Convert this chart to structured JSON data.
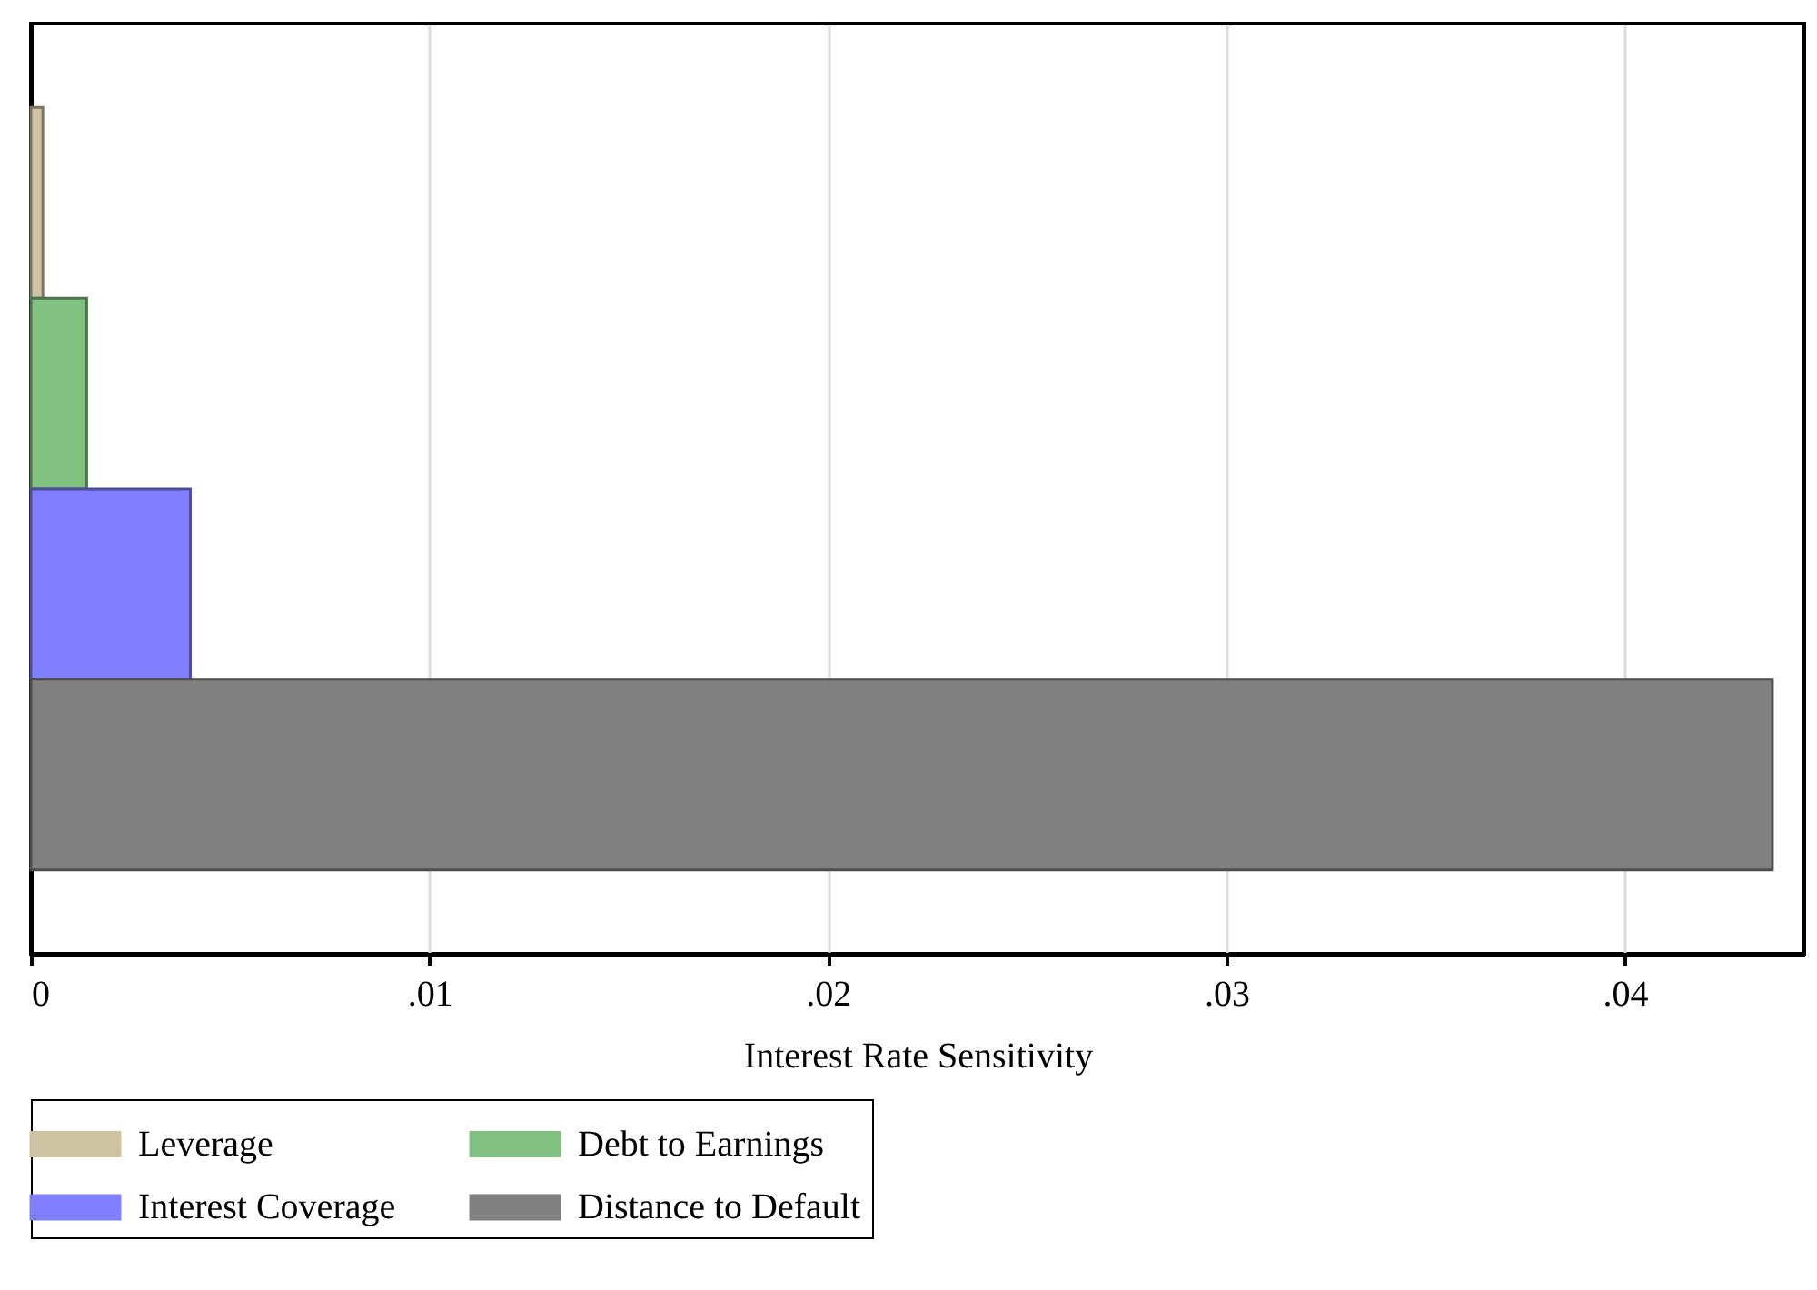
{
  "chart_data": {
    "type": "bar",
    "orientation": "horizontal",
    "xlabel": "Interest Rate Sensitivity",
    "categories": [
      null,
      null,
      null,
      null
    ],
    "series": [
      {
        "name": "Leverage",
        "color": "#cdc3a3",
        "values": [
          0.0003,
          null,
          null,
          null
        ]
      },
      {
        "name": "Debt to Earnings",
        "color": "#80c080",
        "values": [
          null,
          0.0014,
          null,
          null
        ]
      },
      {
        "name": "Interest Coverage",
        "color": "#8080ff",
        "values": [
          null,
          null,
          0.004,
          null
        ]
      },
      {
        "name": "Distance to Default",
        "color": "#808080",
        "values": [
          null,
          null,
          null,
          0.0437
        ]
      }
    ],
    "xlim": [
      0,
      0.0445
    ],
    "xticks": [
      0,
      {
        "value": 0.01,
        "label": ".01"
      },
      {
        "value": 0.02,
        "label": ".02"
      },
      {
        "value": 0.03,
        "label": ".03"
      },
      {
        "value": 0.04,
        "label": ".04"
      }
    ],
    "grid": "x",
    "legend": "bottom",
    "tick_labels": "x"
  }
}
